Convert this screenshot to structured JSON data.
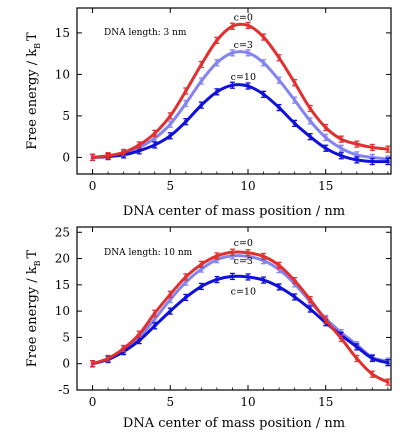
{
  "chart_data": [
    {
      "type": "line",
      "annotation": "DNA length: 3 nm",
      "xlabel": "DNA center of mass position /  nm",
      "ylabel_main": "Free energy / k",
      "ylabel_sub": "B",
      "ylabel_tail": "T",
      "xlim": [
        -1,
        19.2
      ],
      "ylim": [
        -2,
        18
      ],
      "xticks": [
        0,
        5,
        10,
        15
      ],
      "yticks": [
        0,
        5,
        10,
        15
      ],
      "x": [
        0,
        1,
        2,
        3,
        4,
        5,
        6,
        7,
        8,
        9,
        10,
        11,
        12,
        13,
        14,
        15,
        16,
        17,
        18,
        19
      ],
      "series": [
        {
          "name": "c=0",
          "color": "#e03030",
          "values": [
            0,
            0.2,
            0.6,
            1.5,
            2.9,
            5.0,
            8.0,
            11.2,
            14.1,
            15.8,
            15.9,
            14.5,
            12.0,
            9.0,
            5.9,
            3.6,
            2.2,
            1.6,
            1.2,
            1.0
          ]
        },
        {
          "name": "c=3",
          "color": "#8484f0",
          "values": [
            0,
            0.15,
            0.45,
            1.2,
            2.3,
            4.0,
            6.5,
            9.2,
            11.4,
            12.6,
            12.6,
            11.4,
            9.3,
            6.9,
            4.4,
            2.4,
            1.1,
            0.3,
            0.0,
            -0.2
          ]
        },
        {
          "name": "c=10",
          "color": "#1010d8",
          "values": [
            0,
            0.1,
            0.3,
            0.8,
            1.5,
            2.6,
            4.3,
            6.3,
            7.9,
            8.7,
            8.6,
            7.6,
            6.0,
            4.1,
            2.5,
            1.1,
            0.2,
            -0.3,
            -0.5,
            -0.5
          ]
        }
      ]
    },
    {
      "type": "line",
      "annotation": "DNA length: 10 nm",
      "xlabel": "DNA center of mass position /  nm",
      "ylabel_main": "Free energy / k",
      "ylabel_sub": "B",
      "ylabel_tail": "T",
      "xlim": [
        -1,
        19.2
      ],
      "ylim": [
        -5,
        26
      ],
      "xticks": [
        0,
        5,
        10,
        15
      ],
      "yticks": [
        -5,
        0,
        5,
        10,
        15,
        20,
        25
      ],
      "x": [
        0,
        1,
        2,
        3,
        4,
        5,
        6,
        7,
        8,
        9,
        10,
        11,
        12,
        13,
        14,
        15,
        16,
        17,
        18,
        19
      ],
      "series": [
        {
          "name": "c=0",
          "color": "#e03030",
          "values": [
            0,
            1.0,
            2.9,
            5.6,
            9.6,
            13.2,
            16.5,
            18.9,
            20.5,
            21.2,
            21.1,
            20.4,
            18.7,
            15.8,
            12.2,
            8.3,
            4.8,
            1.0,
            -2.0,
            -3.5
          ]
        },
        {
          "name": "c=3",
          "color": "#8484f0",
          "values": [
            0,
            0.9,
            2.6,
            5.0,
            8.5,
            12.2,
            15.5,
            18.0,
            19.8,
            20.5,
            20.4,
            19.6,
            17.9,
            15.2,
            11.8,
            8.6,
            5.9,
            3.6,
            1.2,
            0.5
          ]
        },
        {
          "name": "c=10",
          "color": "#1010d8",
          "values": [
            0,
            0.8,
            2.3,
            4.4,
            7.2,
            10.0,
            12.6,
            14.7,
            16.0,
            16.6,
            16.5,
            15.9,
            14.6,
            12.7,
            10.4,
            7.8,
            5.4,
            3.2,
            1.0,
            0.2
          ]
        }
      ]
    }
  ]
}
